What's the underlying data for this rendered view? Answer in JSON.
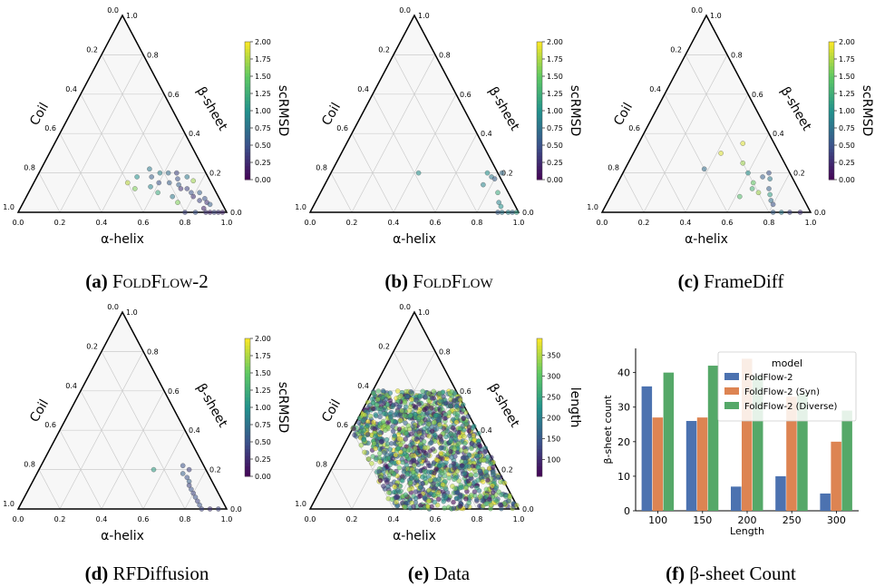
{
  "ternary_axes": {
    "bottom_label": "α-helix",
    "left_label": "Coil",
    "right_label": "β-sheet",
    "ticks": [
      "0.0",
      "0.2",
      "0.4",
      "0.6",
      "0.8",
      "1.0"
    ]
  },
  "colorbars": {
    "scrmsd": {
      "label": "scRMSD",
      "ticks": [
        "0.00",
        "0.25",
        "0.50",
        "0.75",
        "1.00",
        "1.25",
        "1.50",
        "1.75",
        "2.00"
      ],
      "min": 0,
      "max": 2
    },
    "length": {
      "label": "length",
      "ticks": [
        "100",
        "150",
        "200",
        "250",
        "300",
        "350"
      ],
      "min": 60,
      "max": 390
    }
  },
  "captions": [
    {
      "tag": "(a)",
      "name": "FoldFlow-2"
    },
    {
      "tag": "(b)",
      "name": "FoldFlow"
    },
    {
      "tag": "(c)",
      "name": "FrameDiff"
    },
    {
      "tag": "(d)",
      "name": "RFDiffusion"
    },
    {
      "tag": "(e)",
      "name": "Data"
    },
    {
      "tag": "(f)",
      "name": "β-sheet Count"
    }
  ],
  "chart_data": [
    {
      "type": "scatter",
      "subtype": "ternary",
      "panel": "a",
      "components": [
        "α-helix",
        "β-sheet",
        "Coil"
      ],
      "color_by": "scRMSD",
      "points_alpha_beta_c": [
        [
          0.45,
          0.15,
          1.8
        ],
        [
          0.5,
          0.12,
          1.6
        ],
        [
          0.48,
          0.18,
          1.0
        ],
        [
          0.52,
          0.22,
          0.8
        ],
        [
          0.55,
          0.18,
          0.6
        ],
        [
          0.58,
          0.2,
          0.9
        ],
        [
          0.6,
          0.15,
          0.5
        ],
        [
          0.62,
          0.2,
          0.7
        ],
        [
          0.65,
          0.15,
          0.6
        ],
        [
          0.66,
          0.2,
          0.4
        ],
        [
          0.68,
          0.17,
          0.5
        ],
        [
          0.7,
          0.14,
          0.6
        ],
        [
          0.72,
          0.12,
          0.3
        ],
        [
          0.72,
          0.18,
          0.8
        ],
        [
          0.75,
          0.12,
          0.4
        ],
        [
          0.76,
          0.16,
          1.7
        ],
        [
          0.78,
          0.1,
          0.5
        ],
        [
          0.8,
          0.08,
          0.3
        ],
        [
          0.82,
          0.1,
          0.6
        ],
        [
          0.84,
          0.06,
          0.4
        ],
        [
          0.86,
          0.07,
          0.5
        ],
        [
          0.88,
          0.05,
          0.3
        ],
        [
          0.9,
          0.04,
          0.6
        ],
        [
          0.88,
          0.02,
          0.2
        ],
        [
          0.9,
          0.0,
          0.3
        ],
        [
          0.92,
          0.0,
          0.2
        ],
        [
          0.94,
          0.0,
          0.4
        ],
        [
          0.96,
          0.0,
          0.3
        ],
        [
          0.98,
          0.0,
          0.2
        ],
        [
          0.85,
          0.0,
          0.5
        ],
        [
          0.8,
          0.0,
          0.4
        ],
        [
          0.7,
          0.08,
          0.8
        ],
        [
          0.74,
          0.05,
          1.6
        ],
        [
          0.62,
          0.1,
          1.2
        ],
        [
          0.57,
          0.13,
          0.9
        ]
      ]
    },
    {
      "type": "scatter",
      "subtype": "ternary",
      "panel": "b",
      "components": [
        "α-helix",
        "β-sheet",
        "Coil"
      ],
      "color_by": "scRMSD",
      "points_alpha_beta_c": [
        [
          0.42,
          0.2,
          1.0
        ],
        [
          0.75,
          0.2,
          1.0
        ],
        [
          0.78,
          0.18,
          0.8
        ],
        [
          0.8,
          0.17,
          0.6
        ],
        [
          0.82,
          0.2,
          0.7
        ],
        [
          0.76,
          0.14,
          0.9
        ],
        [
          0.85,
          0.1,
          1.2
        ],
        [
          0.88,
          0.05,
          0.9
        ],
        [
          0.9,
          0.03,
          1.0
        ],
        [
          0.92,
          0.0,
          0.8
        ],
        [
          0.95,
          0.0,
          0.9
        ],
        [
          0.97,
          0.0,
          0.7
        ],
        [
          0.99,
          0.0,
          1.1
        ],
        [
          0.9,
          0.0,
          0.6
        ]
      ]
    },
    {
      "type": "scatter",
      "subtype": "ternary",
      "panel": "c",
      "components": [
        "α-helix",
        "β-sheet",
        "Coil"
      ],
      "color_by": "scRMSD",
      "points_alpha_beta_c": [
        [
          0.38,
          0.22,
          0.7
        ],
        [
          0.42,
          0.3,
          1.9
        ],
        [
          0.5,
          0.35,
          1.9
        ],
        [
          0.55,
          0.25,
          1.7
        ],
        [
          0.6,
          0.2,
          1.0
        ],
        [
          0.65,
          0.15,
          1.5
        ],
        [
          0.68,
          0.18,
          0.6
        ],
        [
          0.7,
          0.2,
          0.5
        ],
        [
          0.72,
          0.17,
          0.8
        ],
        [
          0.66,
          0.12,
          1.3
        ],
        [
          0.7,
          0.1,
          1.7
        ],
        [
          0.74,
          0.12,
          0.6
        ],
        [
          0.76,
          0.09,
          1.1
        ],
        [
          0.78,
          0.06,
          0.7
        ],
        [
          0.8,
          0.04,
          0.5
        ],
        [
          0.82,
          0.0,
          0.6
        ],
        [
          0.86,
          0.0,
          0.8
        ],
        [
          0.9,
          0.0,
          0.4
        ],
        [
          0.95,
          0.0,
          0.3
        ],
        [
          0.62,
          0.08,
          1.4
        ]
      ]
    },
    {
      "type": "scatter",
      "subtype": "ternary",
      "panel": "d",
      "components": [
        "α-helix",
        "β-sheet",
        "Coil"
      ],
      "color_by": "scRMSD",
      "points_alpha_beta_c": [
        [
          0.55,
          0.2,
          1.1
        ],
        [
          0.68,
          0.22,
          0.5
        ],
        [
          0.7,
          0.18,
          0.6
        ],
        [
          0.72,
          0.2,
          0.4
        ],
        [
          0.73,
          0.16,
          0.5
        ],
        [
          0.75,
          0.14,
          0.6
        ],
        [
          0.76,
          0.12,
          0.4
        ],
        [
          0.78,
          0.1,
          0.5
        ],
        [
          0.8,
          0.08,
          0.4
        ],
        [
          0.82,
          0.06,
          0.5
        ],
        [
          0.84,
          0.04,
          0.4
        ],
        [
          0.86,
          0.02,
          0.5
        ],
        [
          0.88,
          0.0,
          0.4
        ],
        [
          0.92,
          0.0,
          0.3
        ],
        [
          0.96,
          0.0,
          0.4
        ]
      ]
    },
    {
      "type": "scatter",
      "subtype": "ternary",
      "panel": "e",
      "components": [
        "α-helix",
        "β-sheet",
        "Coil"
      ],
      "color_by": "length",
      "dense_region": {
        "alpha_min": 0.0,
        "alpha_max": 1.0,
        "beta_min": 0.0,
        "beta_max": 0.6,
        "coil_min": 0.0,
        "coil_max": 0.6
      },
      "approx_point_count": 1400
    },
    {
      "type": "bar",
      "panel": "f",
      "categories": [
        "100",
        "150",
        "200",
        "250",
        "300"
      ],
      "xlabel": "Length",
      "ylabel": "β-sheet count",
      "ylim": [
        0,
        47
      ],
      "yticks": [
        0,
        10,
        20,
        30,
        40
      ],
      "legend_title": "model",
      "legend_position": "top-right",
      "series": [
        {
          "name": "FoldFlow-2",
          "color": "#4c72b0",
          "values": [
            36,
            26,
            7,
            10,
            5
          ]
        },
        {
          "name": "FoldFlow-2 (Syn)",
          "color": "#dd8452",
          "values": [
            27,
            27,
            44,
            33,
            20
          ]
        },
        {
          "name": "FoldFlow-2 (Diverse)",
          "color": "#55a868",
          "values": [
            40,
            42,
            39,
            34,
            29
          ]
        }
      ]
    }
  ]
}
